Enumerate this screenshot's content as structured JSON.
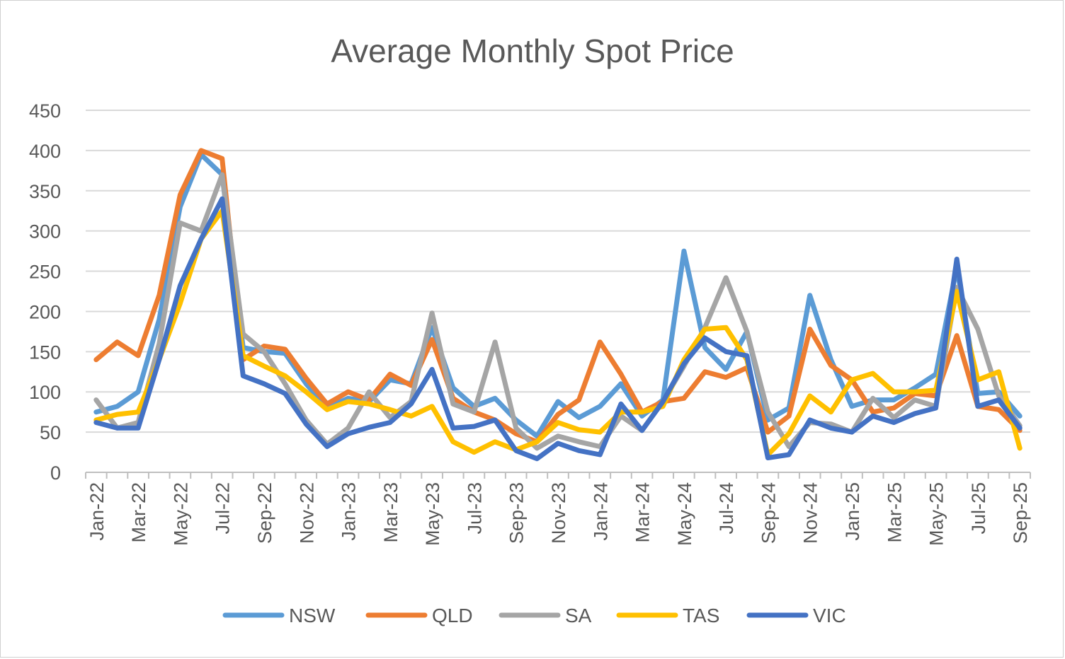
{
  "chart_data": {
    "type": "line",
    "title": "Average Monthly Spot Price",
    "xlabel": "",
    "ylabel": "",
    "ylim": [
      0,
      450
    ],
    "yticks": [
      0,
      50,
      100,
      150,
      200,
      250,
      300,
      350,
      400,
      450
    ],
    "grid": true,
    "legend": "bottom",
    "x": [
      "Jan-22",
      "Feb-22",
      "Mar-22",
      "Apr-22",
      "May-22",
      "Jun-22",
      "Jul-22",
      "Aug-22",
      "Sep-22",
      "Oct-22",
      "Nov-22",
      "Dec-22",
      "Jan-23",
      "Feb-23",
      "Mar-23",
      "Apr-23",
      "May-23",
      "Jun-23",
      "Jul-23",
      "Aug-23",
      "Sep-23",
      "Oct-23",
      "Nov-23",
      "Dec-23",
      "Jan-24",
      "Feb-24",
      "Mar-24",
      "Apr-24",
      "May-24",
      "Jun-24",
      "Jul-24",
      "Aug-24",
      "Sep-24",
      "Oct-24",
      "Nov-24",
      "Dec-24",
      "Jan-25",
      "Feb-25",
      "Mar-25",
      "Apr-25",
      "May-25",
      "Jun-25",
      "Jul-25",
      "Aug-25",
      "Sep-25"
    ],
    "xtick_labels": [
      "Jan-22",
      "Mar-22",
      "May-22",
      "Jul-22",
      "Sep-22",
      "Nov-22",
      "Jan-23",
      "Mar-23",
      "May-23",
      "Jul-23",
      "Sep-23",
      "Nov-23",
      "Jan-24",
      "Mar-24",
      "May-24",
      "Jul-24",
      "Sep-24",
      "Nov-24",
      "Jan-25",
      "Mar-25",
      "May-25",
      "Jul-25",
      "Sep-25"
    ],
    "series": [
      {
        "name": "NSW",
        "color": "#5b9bd5",
        "values": [
          75,
          82,
          100,
          190,
          330,
          395,
          370,
          155,
          150,
          148,
          110,
          80,
          92,
          88,
          115,
          110,
          180,
          105,
          82,
          92,
          65,
          45,
          88,
          68,
          82,
          110,
          70,
          90,
          275,
          155,
          128,
          175,
          65,
          80,
          220,
          140,
          82,
          90,
          90,
          105,
          122,
          255,
          98,
          100,
          70
        ]
      },
      {
        "name": "QLD",
        "color": "#ed7d31",
        "values": [
          140,
          162,
          145,
          220,
          345,
          400,
          390,
          140,
          157,
          153,
          117,
          85,
          100,
          90,
          122,
          108,
          165,
          92,
          75,
          65,
          48,
          38,
          72,
          90,
          162,
          122,
          75,
          88,
          92,
          125,
          118,
          130,
          50,
          70,
          178,
          133,
          115,
          75,
          80,
          98,
          95,
          170,
          82,
          78,
          52
        ]
      },
      {
        "name": "SA",
        "color": "#a5a5a5",
        "values": [
          90,
          55,
          62,
          160,
          310,
          300,
          370,
          172,
          150,
          110,
          65,
          35,
          55,
          100,
          68,
          88,
          198,
          85,
          75,
          162,
          55,
          30,
          45,
          38,
          32,
          70,
          52,
          88,
          132,
          180,
          242,
          175,
          75,
          32,
          62,
          60,
          50,
          92,
          68,
          90,
          82,
          230,
          178,
          95,
          58
        ]
      },
      {
        "name": "TAS",
        "color": "#ffc000",
        "values": [
          65,
          72,
          75,
          140,
          210,
          290,
          325,
          145,
          132,
          120,
          100,
          78,
          88,
          85,
          78,
          70,
          82,
          38,
          25,
          38,
          28,
          38,
          62,
          53,
          50,
          75,
          75,
          82,
          140,
          178,
          180,
          140,
          22,
          48,
          95,
          75,
          115,
          123,
          100,
          100,
          102,
          225,
          115,
          125,
          30
        ]
      },
      {
        "name": "VIC",
        "color": "#4472c4",
        "values": [
          62,
          55,
          55,
          140,
          232,
          290,
          340,
          120,
          110,
          98,
          60,
          32,
          48,
          56,
          62,
          85,
          128,
          55,
          57,
          65,
          27,
          17,
          36,
          27,
          22,
          85,
          52,
          88,
          135,
          167,
          150,
          145,
          18,
          22,
          65,
          55,
          50,
          70,
          62,
          73,
          80,
          265,
          82,
          90,
          55
        ]
      }
    ]
  }
}
